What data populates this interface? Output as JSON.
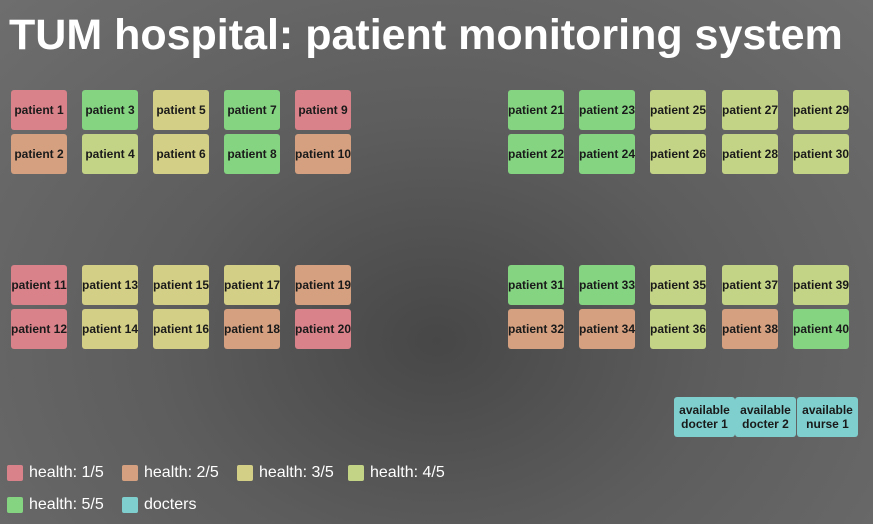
{
  "app_title": "TUM hospital: patient monitoring system",
  "colors": {
    "health_1": "#d9828a",
    "health_2": "#d4a080",
    "health_3": "#d4cf86",
    "health_4": "#c4d486",
    "health_5": "#84d482",
    "docters": "#7fcfcf"
  },
  "patients": [
    {
      "label": "patient 1",
      "health": 1
    },
    {
      "label": "patient 2",
      "health": 2
    },
    {
      "label": "patient 3",
      "health": 5
    },
    {
      "label": "patient 4",
      "health": 4
    },
    {
      "label": "patient 5",
      "health": 3
    },
    {
      "label": "patient 6",
      "health": 3
    },
    {
      "label": "patient 7",
      "health": 5
    },
    {
      "label": "patient 8",
      "health": 5
    },
    {
      "label": "patient 9",
      "health": 1
    },
    {
      "label": "patient 10",
      "health": 2
    },
    {
      "label": "patient 11",
      "health": 1
    },
    {
      "label": "patient 12",
      "health": 1
    },
    {
      "label": "patient 13",
      "health": 3
    },
    {
      "label": "patient 14",
      "health": 3
    },
    {
      "label": "patient 15",
      "health": 3
    },
    {
      "label": "patient 16",
      "health": 3
    },
    {
      "label": "patient 17",
      "health": 3
    },
    {
      "label": "patient 18",
      "health": 2
    },
    {
      "label": "patient 19",
      "health": 2
    },
    {
      "label": "patient 20",
      "health": 1
    },
    {
      "label": "patient 21",
      "health": 5
    },
    {
      "label": "patient 22",
      "health": 5
    },
    {
      "label": "patient 23",
      "health": 5
    },
    {
      "label": "patient 24",
      "health": 5
    },
    {
      "label": "patient 25",
      "health": 4
    },
    {
      "label": "patient 26",
      "health": 4
    },
    {
      "label": "patient 27",
      "health": 4
    },
    {
      "label": "patient 28",
      "health": 4
    },
    {
      "label": "patient 29",
      "health": 4
    },
    {
      "label": "patient 30",
      "health": 4
    },
    {
      "label": "patient 31",
      "health": 5
    },
    {
      "label": "patient 32",
      "health": 2
    },
    {
      "label": "patient 33",
      "health": 5
    },
    {
      "label": "patient 34",
      "health": 2
    },
    {
      "label": "patient 35",
      "health": 4
    },
    {
      "label": "patient 36",
      "health": 4
    },
    {
      "label": "patient 37",
      "health": 4
    },
    {
      "label": "patient 38",
      "health": 2
    },
    {
      "label": "patient 39",
      "health": 4
    },
    {
      "label": "patient 40",
      "health": 5
    }
  ],
  "staff": [
    {
      "label": "available docter 1"
    },
    {
      "label": "available docter 2"
    },
    {
      "label": "available nurse 1"
    }
  ],
  "legend": [
    {
      "label": "health: 1/5",
      "color_key": "health_1"
    },
    {
      "label": "health: 2/5",
      "color_key": "health_2"
    },
    {
      "label": "health: 3/5",
      "color_key": "health_3"
    },
    {
      "label": "health: 4/5",
      "color_key": "health_4"
    },
    {
      "label": "health: 5/5",
      "color_key": "health_5"
    },
    {
      "label": "docters",
      "color_key": "docters"
    }
  ]
}
